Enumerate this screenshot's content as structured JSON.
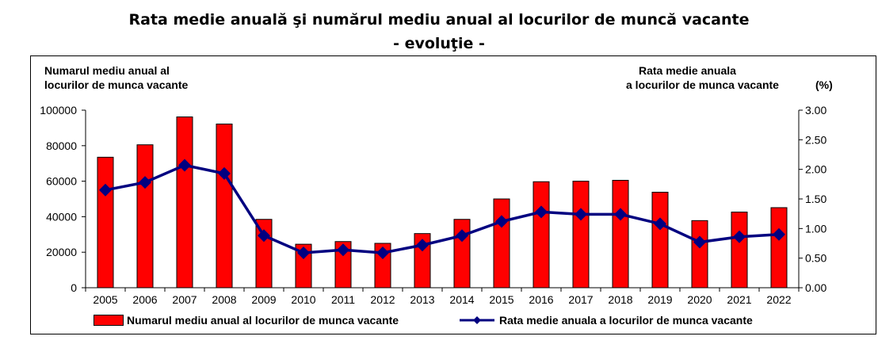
{
  "chart_data": {
    "type": "bar+line",
    "title": "Rata medie anuală şi numărul mediu anual al locurilor de muncă vacante",
    "subtitle": "- evoluţie -",
    "left_axis_label_line1": "Numarul mediu anual al",
    "left_axis_label_line2": "locurilor de munca vacante",
    "right_axis_label_line1": "Rata medie anuala",
    "right_axis_label_line2": "a locurilor de munca vacante",
    "right_axis_unit": "(%)",
    "categories": [
      "2005",
      "2006",
      "2007",
      "2008",
      "2009",
      "2010",
      "2011",
      "2012",
      "2013",
      "2014",
      "2015",
      "2016",
      "2017",
      "2018",
      "2019",
      "2020",
      "2021",
      "2022"
    ],
    "y_left_ticks": [
      "0",
      "20000",
      "40000",
      "60000",
      "80000",
      "100000"
    ],
    "y_left_lim": [
      0,
      100000
    ],
    "y_right_ticks": [
      "0.00",
      "0.50",
      "1.00",
      "1.50",
      "2.00",
      "2.50",
      "3.00"
    ],
    "y_right_lim": [
      0,
      3
    ],
    "grid": false,
    "legend_position": "bottom",
    "series": [
      {
        "name": "Numarul mediu anual al locurilor de munca vacante",
        "type": "bar",
        "axis": "left",
        "color": "#ff0000",
        "values": [
          73500,
          80500,
          96200,
          92200,
          38500,
          24500,
          26000,
          25000,
          30500,
          38500,
          50000,
          59700,
          60000,
          60500,
          53800,
          37800,
          42600,
          45100
        ]
      },
      {
        "name": "Rata medie anuala a locurilor de munca vacante",
        "type": "line",
        "axis": "right",
        "color": "#000080",
        "values": [
          1.65,
          1.78,
          2.07,
          1.93,
          0.88,
          0.59,
          0.64,
          0.59,
          0.72,
          0.88,
          1.12,
          1.28,
          1.24,
          1.24,
          1.08,
          0.77,
          0.86,
          0.9
        ]
      }
    ]
  }
}
